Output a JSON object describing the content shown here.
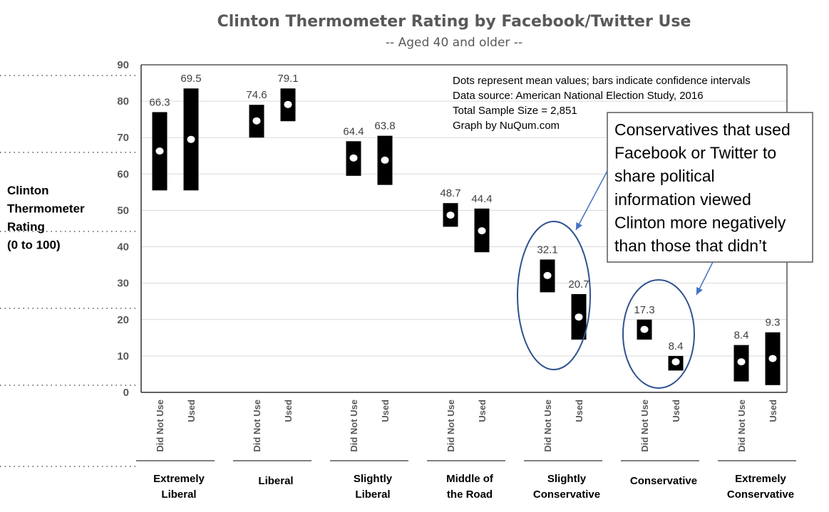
{
  "chart_data": {
    "type": "scatter",
    "title": "Clinton Thermometer Rating by Facebook/Twitter Use",
    "subtitle": "-- Aged 40 and older --",
    "ylabel_lines": [
      "Clinton",
      "Thermometer",
      "Rating",
      "(0 to 100)"
    ],
    "ylim": [
      0,
      90
    ],
    "yticks": [
      "0",
      "10",
      "20",
      "30",
      "40",
      "50",
      "60",
      "70",
      "80",
      "90"
    ],
    "grid": true,
    "bar_labels": [
      "Did Not Use",
      "Used"
    ],
    "groups": [
      {
        "label_lines": [
          "Extremely",
          "Liberal"
        ],
        "points": [
          {
            "bar": "Did Not Use",
            "mean": 66.3,
            "label": "66.3",
            "low": 55.5,
            "high": 77
          },
          {
            "bar": "Used",
            "mean": 69.5,
            "label": "69.5",
            "low": 55.5,
            "high": 83.5
          }
        ]
      },
      {
        "label_lines": [
          "Liberal"
        ],
        "points": [
          {
            "bar": "Did Not Use",
            "mean": 74.6,
            "label": "74.6",
            "low": 70,
            "high": 79
          },
          {
            "bar": "Used",
            "mean": 79.1,
            "label": "79.1",
            "low": 74.5,
            "high": 83.5
          }
        ]
      },
      {
        "label_lines": [
          "Slightly",
          "Liberal"
        ],
        "points": [
          {
            "bar": "Did Not Use",
            "mean": 64.4,
            "label": "64.4",
            "low": 59.5,
            "high": 69
          },
          {
            "bar": "Used",
            "mean": 63.8,
            "label": "63.8",
            "low": 57,
            "high": 70.5
          }
        ]
      },
      {
        "label_lines": [
          "Middle of",
          "the Road"
        ],
        "points": [
          {
            "bar": "Did Not Use",
            "mean": 48.7,
            "label": "48.7",
            "low": 45.5,
            "high": 52
          },
          {
            "bar": "Used",
            "mean": 44.4,
            "label": "44.4",
            "low": 38.5,
            "high": 50.5
          }
        ]
      },
      {
        "label_lines": [
          "Slightly",
          "Conservative"
        ],
        "points": [
          {
            "bar": "Did Not Use",
            "mean": 32.1,
            "label": "32.1",
            "low": 27.5,
            "high": 36.5
          },
          {
            "bar": "Used",
            "mean": 20.7,
            "label": "20.7",
            "low": 14.5,
            "high": 27
          }
        ]
      },
      {
        "label_lines": [
          "Conservative"
        ],
        "points": [
          {
            "bar": "Did Not Use",
            "mean": 17.3,
            "label": "17.3",
            "low": 14.5,
            "high": 20
          },
          {
            "bar": "Used",
            "mean": 8.4,
            "label": "8.4",
            "low": 6,
            "high": 10
          }
        ]
      },
      {
        "label_lines": [
          "Extremely",
          "Conservative"
        ],
        "points": [
          {
            "bar": "Did Not Use",
            "mean": 8.4,
            "label": "8.4",
            "low": 3,
            "high": 13
          },
          {
            "bar": "Used",
            "mean": 9.3,
            "label": "9.3",
            "low": 2,
            "high": 16.5
          }
        ]
      }
    ],
    "notes": [
      "Dots represent mean values; bars indicate confidence intervals",
      "Data source: American National Election Study, 2016",
      "Total Sample Size = 2,851",
      "Graph by NuQum.com"
    ],
    "callout_lines": [
      "Conservatives that used",
      "Facebook or Twitter to",
      "share political",
      "information viewed",
      "Clinton more negatively",
      "than those that didn’t"
    ],
    "colors": {
      "bar": "#000000",
      "dot": "#ffffff",
      "grid": "#d9d9d9",
      "title": "#595959",
      "value_label": "#404040",
      "axis_label": "#000000",
      "ellipse": "#2f528f",
      "arrow": "#4472c4",
      "callout_border": "#595959"
    }
  }
}
